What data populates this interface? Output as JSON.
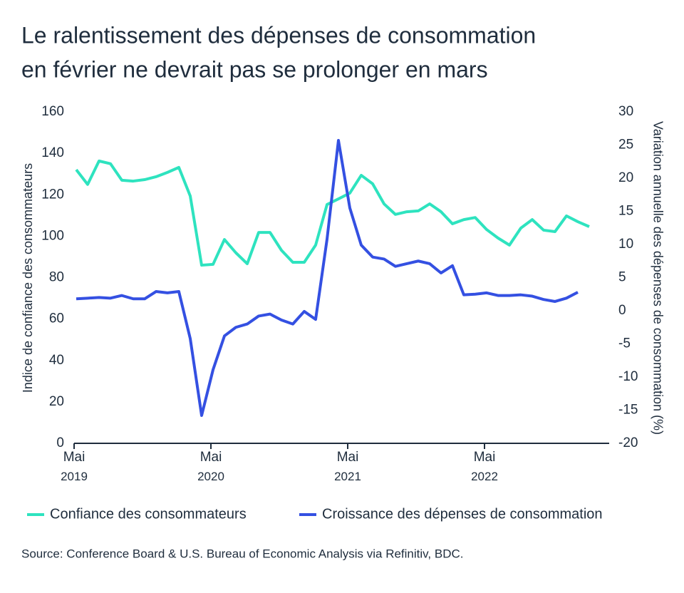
{
  "chart_data": {
    "type": "line",
    "title": [
      "Le ralentissement des dépenses de consommation",
      "en février ne devrait pas se prolonger en mars"
    ],
    "categories": [
      "Mai 2019",
      null,
      null,
      null,
      null,
      null,
      null,
      null,
      null,
      null,
      null,
      null,
      "Mai 2020",
      null,
      null,
      null,
      null,
      null,
      null,
      null,
      null,
      null,
      null,
      null,
      "Mai 2021",
      null,
      null,
      null,
      null,
      null,
      null,
      null,
      null,
      null,
      null,
      null,
      "Mai 2022",
      null,
      null,
      null,
      null,
      null,
      null,
      null,
      null,
      null
    ],
    "series": [
      {
        "name": "Confiance des consommateurs",
        "color": "#2ee3bf",
        "axis": "y",
        "values": [
          132.1,
          125,
          136.3,
          135,
          127,
          126.6,
          127.3,
          128.7,
          130.8,
          133.2,
          119.4,
          86,
          86.4,
          98.4,
          92,
          86.7,
          101.8,
          101.8,
          93.2,
          87.4,
          87.4,
          95.7,
          115.3,
          118,
          120.8,
          129.4,
          125.3,
          115.6,
          110.5,
          111.8,
          112.2,
          115.6,
          111.8,
          106,
          108,
          109,
          103.2,
          99.1,
          95.7,
          103.9,
          108,
          102.9,
          102.2,
          109.8,
          107,
          104.6
        ]
      },
      {
        "name": "Croissance des dépenses de consommation",
        "color": "#3450e2",
        "axis": "y2",
        "values": [
          1.8,
          1.9,
          2.0,
          1.9,
          2.3,
          1.8,
          1.8,
          2.9,
          2.7,
          2.9,
          -4.2,
          -15.8,
          -8.9,
          -3.8,
          -2.5,
          -2.0,
          -0.8,
          -0.5,
          -1.4,
          -2.0,
          -0.1,
          -1.3,
          10.8,
          25.7,
          15.5,
          9.9,
          8.1,
          7.8,
          6.7,
          7.1,
          7.5,
          7.1,
          5.7,
          6.8,
          2.4,
          2.5,
          2.7,
          2.3,
          2.3,
          2.4,
          2.2,
          1.7,
          1.4,
          1.9,
          2.8,
          null
        ]
      }
    ],
    "ylabel": "Indice de confiance des consommateurs",
    "y2label": "Variation annuelle des dépenses de consommation (%)",
    "ylim": [
      0,
      160
    ],
    "yticks": [
      0,
      20,
      40,
      60,
      80,
      100,
      120,
      140,
      160
    ],
    "y2lim": [
      -20,
      30
    ],
    "y2ticks": [
      -20,
      -15,
      -10,
      -5,
      0,
      5,
      10,
      15,
      20,
      25,
      30
    ],
    "source": "Source: Conference Board & U.S. Bureau of Economic Analysis via Refinitiv, BDC.",
    "legend": "bottom"
  }
}
